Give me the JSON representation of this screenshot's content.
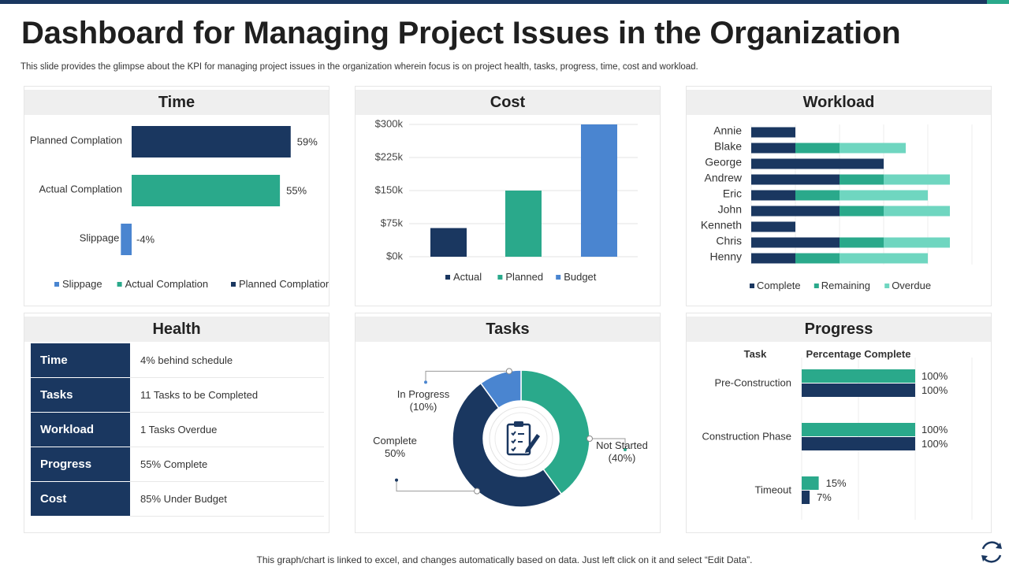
{
  "slide": {
    "title": "Dashboard for Managing Project Issues in the Organization",
    "subtitle": "This slide provides the glimpse about the KPI for managing project issues in the organization wherein focus is on project health, tasks, progress, time, cost and workload.",
    "footer": "This graph/chart is linked to excel,  and changes automatically based on data. Just left click on it and select “Edit Data”."
  },
  "colors": {
    "navy": "#1a3760",
    "teal": "#2aa98b",
    "light_teal": "#6fd6c0",
    "blue": "#4a85d0",
    "header_bg": "#efefef"
  },
  "panels": {
    "time": {
      "title": "Time"
    },
    "cost": {
      "title": "Cost"
    },
    "workload": {
      "title": "Workload"
    },
    "health": {
      "title": "Health",
      "rows": [
        {
          "key": "Time",
          "value": "4% behind schedule"
        },
        {
          "key": "Tasks",
          "value": "11 Tasks to be Completed"
        },
        {
          "key": "Workload",
          "value": "1 Tasks Overdue"
        },
        {
          "key": "Progress",
          "value": "55% Complete"
        },
        {
          "key": "Cost",
          "value": "85% Under Budget"
        }
      ]
    },
    "tasks": {
      "title": "Tasks",
      "center_icon": "clipboard-checklist-icon"
    },
    "progress": {
      "title": "Progress"
    }
  },
  "chart_data": [
    {
      "id": "time",
      "type": "bar",
      "orientation": "horizontal",
      "categories": [
        "Planned Complation",
        "Actual Complation",
        "Slippage"
      ],
      "values": [
        59,
        55,
        -4
      ],
      "value_labels": [
        "59%",
        "55%",
        "-4%"
      ],
      "colors": [
        "#1a3760",
        "#2aa98b",
        "#4a85d0"
      ],
      "legend": [
        "Slippage",
        "Actual Complation",
        "Planned Complation"
      ],
      "legend_colors": [
        "#4a85d0",
        "#2aa98b",
        "#1a3760"
      ],
      "legend_position": "bottom"
    },
    {
      "id": "cost",
      "type": "bar",
      "categories": [
        "Actual",
        "Planned",
        "Budget"
      ],
      "values": [
        65000,
        150000,
        300000
      ],
      "colors": [
        "#1a3760",
        "#2aa98b",
        "#4a85d0"
      ],
      "yticks": [
        "$0k",
        "$75k",
        "$150k",
        "$225k",
        "$300k"
      ],
      "ylim": [
        0,
        300000
      ],
      "legend": [
        "Actual",
        "Planned",
        "Budget"
      ],
      "legend_position": "bottom",
      "grid": true
    },
    {
      "id": "workload",
      "type": "bar",
      "orientation": "horizontal",
      "stacked": true,
      "categories": [
        "Annie",
        "Blake",
        "George",
        "Andrew",
        "Eric",
        "John",
        "Kenneth",
        "Chris",
        "Henny"
      ],
      "series": [
        {
          "name": "Complete",
          "color": "#1a3760",
          "values": [
            1,
            1,
            3,
            2,
            1,
            2,
            1,
            2,
            1
          ]
        },
        {
          "name": "Remaining",
          "color": "#2aa98b",
          "values": [
            0,
            1,
            0,
            1,
            1,
            1,
            0,
            1,
            1
          ]
        },
        {
          "name": "Overdue",
          "color": "#6fd6c0",
          "values": [
            0,
            1.5,
            0,
            1.5,
            2,
            1.5,
            0,
            1.5,
            2
          ]
        }
      ],
      "xlim": [
        0,
        5
      ],
      "legend_position": "bottom",
      "grid": true
    },
    {
      "id": "tasks",
      "type": "pie",
      "donut": true,
      "labels": [
        "Not Started",
        "Complete",
        "In Progress"
      ],
      "values": [
        40,
        50,
        10
      ],
      "label_text": [
        [
          "Not Started",
          "(40%)"
        ],
        [
          "Complete",
          "50%"
        ],
        [
          "In Progress",
          "(10%)"
        ]
      ],
      "colors": [
        "#2aa98b",
        "#1a3760",
        "#4a85d0"
      ]
    },
    {
      "id": "progress",
      "type": "bar",
      "orientation": "horizontal",
      "column_headers": [
        "Task",
        "Percentage Complete"
      ],
      "categories": [
        "Pre-Construction",
        "Construction Phase",
        "Timeout"
      ],
      "series": [
        {
          "color": "#2aa98b",
          "values": [
            100,
            100,
            15
          ]
        },
        {
          "color": "#1a3760",
          "values": [
            100,
            100,
            7
          ]
        }
      ],
      "xlim": [
        0,
        100
      ]
    }
  ]
}
